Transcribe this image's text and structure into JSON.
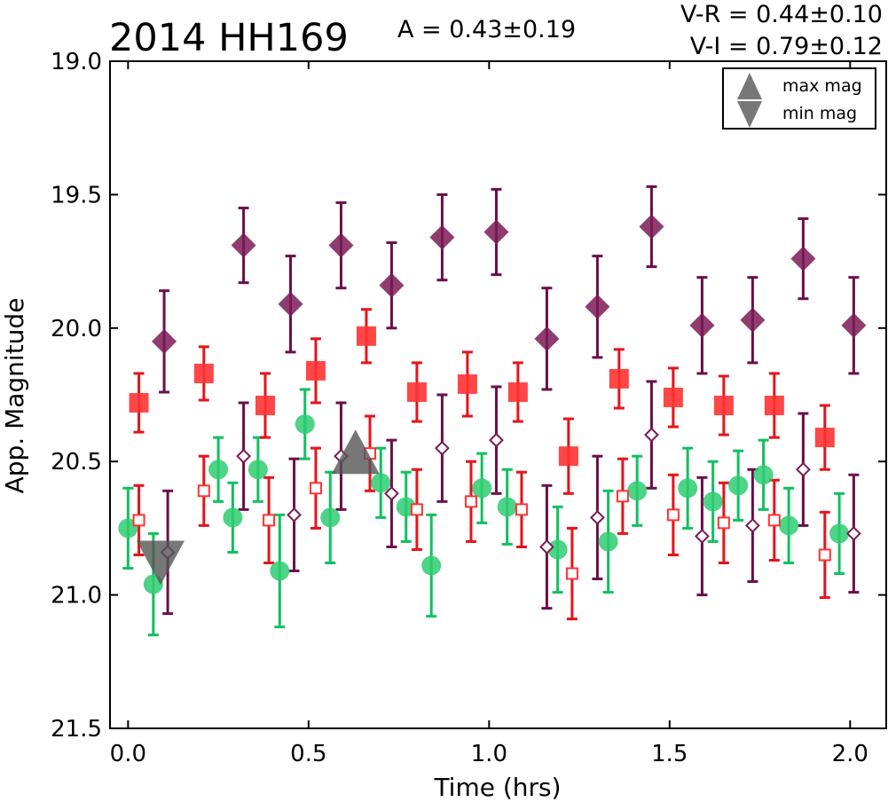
{
  "header": {
    "object_name": "2014 HH169",
    "amplitude": "A  = 0.43±0.19",
    "color_vr": "V-R = 0.44±0.10",
    "color_vi": "V-I  = 0.79±0.12"
  },
  "legend": {
    "max_label": "max mag",
    "min_label": "min mag",
    "placement": "top-right"
  },
  "colors": {
    "purple": "#7b1a56",
    "red": "#ff3333",
    "green": "#2ecc71",
    "gray": "#555555"
  },
  "chart_data": {
    "type": "scatter",
    "xlabel": "Time (hrs)",
    "ylabel": "App. Magnitude",
    "xlim": [
      -0.05,
      2.1
    ],
    "ylim": [
      21.5,
      19.0
    ],
    "y_inverted": true,
    "grid": false,
    "xticks": [
      "0.0",
      "0.5",
      "1.0",
      "1.5",
      "2.0"
    ],
    "xtick_values": [
      0.0,
      0.5,
      1.0,
      1.5,
      2.0
    ],
    "yticks": [
      "19.0",
      "19.5",
      "20.0",
      "20.5",
      "21.0",
      "21.5"
    ],
    "ytick_values": [
      19.0,
      19.5,
      20.0,
      20.5,
      21.0,
      21.5
    ],
    "series": [
      {
        "key": "purple_filled",
        "marker": "diamond",
        "filled": true,
        "color": "#7b1a56",
        "err_color": "#6b0f4a",
        "points": [
          {
            "x": 0.1,
            "y": 20.05,
            "e": 0.19
          },
          {
            "x": 0.32,
            "y": 19.69,
            "e": 0.14
          },
          {
            "x": 0.45,
            "y": 19.91,
            "e": 0.18
          },
          {
            "x": 0.59,
            "y": 19.69,
            "e": 0.16
          },
          {
            "x": 0.73,
            "y": 19.84,
            "e": 0.16
          },
          {
            "x": 0.87,
            "y": 19.66,
            "e": 0.16
          },
          {
            "x": 1.02,
            "y": 19.64,
            "e": 0.16
          },
          {
            "x": 1.16,
            "y": 20.04,
            "e": 0.19
          },
          {
            "x": 1.3,
            "y": 19.92,
            "e": 0.19
          },
          {
            "x": 1.45,
            "y": 19.62,
            "e": 0.15
          },
          {
            "x": 1.59,
            "y": 19.99,
            "e": 0.18
          },
          {
            "x": 1.73,
            "y": 19.97,
            "e": 0.16
          },
          {
            "x": 1.87,
            "y": 19.74,
            "e": 0.15
          },
          {
            "x": 2.01,
            "y": 19.99,
            "e": 0.18
          }
        ]
      },
      {
        "key": "red_filled",
        "marker": "square",
        "filled": true,
        "color": "#ff3333",
        "err_color": "#e6131a",
        "points": [
          {
            "x": 0.03,
            "y": 20.28,
            "e": 0.11
          },
          {
            "x": 0.21,
            "y": 20.17,
            "e": 0.1
          },
          {
            "x": 0.38,
            "y": 20.29,
            "e": 0.12
          },
          {
            "x": 0.52,
            "y": 20.16,
            "e": 0.12
          },
          {
            "x": 0.66,
            "y": 20.03,
            "e": 0.1
          },
          {
            "x": 0.8,
            "y": 20.24,
            "e": 0.11
          },
          {
            "x": 0.94,
            "y": 20.21,
            "e": 0.12
          },
          {
            "x": 1.08,
            "y": 20.24,
            "e": 0.11
          },
          {
            "x": 1.22,
            "y": 20.48,
            "e": 0.14
          },
          {
            "x": 1.36,
            "y": 20.19,
            "e": 0.11
          },
          {
            "x": 1.51,
            "y": 20.26,
            "e": 0.11
          },
          {
            "x": 1.65,
            "y": 20.29,
            "e": 0.11
          },
          {
            "x": 1.79,
            "y": 20.29,
            "e": 0.12
          },
          {
            "x": 1.93,
            "y": 20.41,
            "e": 0.12
          }
        ]
      },
      {
        "key": "green_filled",
        "marker": "circle",
        "filled": true,
        "color": "#2ecc71",
        "err_color": "#10c060",
        "points": [
          {
            "x": 0.0,
            "y": 20.75,
            "e": 0.15
          },
          {
            "x": 0.07,
            "y": 20.96,
            "e": 0.19
          },
          {
            "x": 0.25,
            "y": 20.53,
            "e": 0.12
          },
          {
            "x": 0.29,
            "y": 20.71,
            "e": 0.13
          },
          {
            "x": 0.36,
            "y": 20.53,
            "e": 0.12
          },
          {
            "x": 0.42,
            "y": 20.91,
            "e": 0.21
          },
          {
            "x": 0.49,
            "y": 20.36,
            "e": 0.13
          },
          {
            "x": 0.56,
            "y": 20.71,
            "e": 0.17
          },
          {
            "x": 0.7,
            "y": 20.58,
            "e": 0.13
          },
          {
            "x": 0.77,
            "y": 20.67,
            "e": 0.13
          },
          {
            "x": 0.84,
            "y": 20.89,
            "e": 0.19
          },
          {
            "x": 0.98,
            "y": 20.6,
            "e": 0.13
          },
          {
            "x": 1.05,
            "y": 20.67,
            "e": 0.14
          },
          {
            "x": 1.19,
            "y": 20.83,
            "e": 0.16
          },
          {
            "x": 1.33,
            "y": 20.8,
            "e": 0.19
          },
          {
            "x": 1.41,
            "y": 20.61,
            "e": 0.13
          },
          {
            "x": 1.55,
            "y": 20.6,
            "e": 0.15
          },
          {
            "x": 1.62,
            "y": 20.65,
            "e": 0.15
          },
          {
            "x": 1.69,
            "y": 20.59,
            "e": 0.13
          },
          {
            "x": 1.76,
            "y": 20.55,
            "e": 0.13
          },
          {
            "x": 1.83,
            "y": 20.74,
            "e": 0.14
          },
          {
            "x": 1.97,
            "y": 20.77,
            "e": 0.15
          }
        ]
      },
      {
        "key": "purple_open",
        "marker": "diamond",
        "filled": false,
        "color": "#7b1a56",
        "err_color": "#6b0f4a",
        "points": [
          {
            "x": 0.11,
            "y": 20.84,
            "e": 0.23
          },
          {
            "x": 0.32,
            "y": 20.48,
            "e": 0.2
          },
          {
            "x": 0.46,
            "y": 20.7,
            "e": 0.21
          },
          {
            "x": 0.59,
            "y": 20.48,
            "e": 0.2
          },
          {
            "x": 0.73,
            "y": 20.62,
            "e": 0.2
          },
          {
            "x": 0.87,
            "y": 20.45,
            "e": 0.2
          },
          {
            "x": 1.02,
            "y": 20.42,
            "e": 0.2
          },
          {
            "x": 1.16,
            "y": 20.82,
            "e": 0.23
          },
          {
            "x": 1.3,
            "y": 20.71,
            "e": 0.23
          },
          {
            "x": 1.45,
            "y": 20.4,
            "e": 0.2
          },
          {
            "x": 1.59,
            "y": 20.78,
            "e": 0.22
          },
          {
            "x": 1.73,
            "y": 20.74,
            "e": 0.21
          },
          {
            "x": 1.87,
            "y": 20.53,
            "e": 0.21
          },
          {
            "x": 2.01,
            "y": 20.77,
            "e": 0.22
          }
        ]
      },
      {
        "key": "red_open",
        "marker": "square",
        "filled": false,
        "color": "#ff3333",
        "err_color": "#e6131a",
        "points": [
          {
            "x": 0.03,
            "y": 20.72,
            "e": 0.13
          },
          {
            "x": 0.21,
            "y": 20.61,
            "e": 0.13
          },
          {
            "x": 0.39,
            "y": 20.72,
            "e": 0.16
          },
          {
            "x": 0.52,
            "y": 20.6,
            "e": 0.15
          },
          {
            "x": 0.67,
            "y": 20.47,
            "e": 0.14
          },
          {
            "x": 0.8,
            "y": 20.68,
            "e": 0.15
          },
          {
            "x": 0.95,
            "y": 20.65,
            "e": 0.15
          },
          {
            "x": 1.09,
            "y": 20.68,
            "e": 0.14
          },
          {
            "x": 1.23,
            "y": 20.92,
            "e": 0.17
          },
          {
            "x": 1.37,
            "y": 20.63,
            "e": 0.14
          },
          {
            "x": 1.51,
            "y": 20.7,
            "e": 0.15
          },
          {
            "x": 1.65,
            "y": 20.73,
            "e": 0.15
          },
          {
            "x": 1.79,
            "y": 20.72,
            "e": 0.15
          },
          {
            "x": 1.93,
            "y": 20.85,
            "e": 0.16
          }
        ]
      }
    ],
    "extrema": [
      {
        "kind": "max",
        "x": 0.63,
        "y": 20.51,
        "color": "#555555"
      },
      {
        "kind": "min",
        "x": 0.09,
        "y": 20.85,
        "color": "#555555"
      }
    ]
  }
}
